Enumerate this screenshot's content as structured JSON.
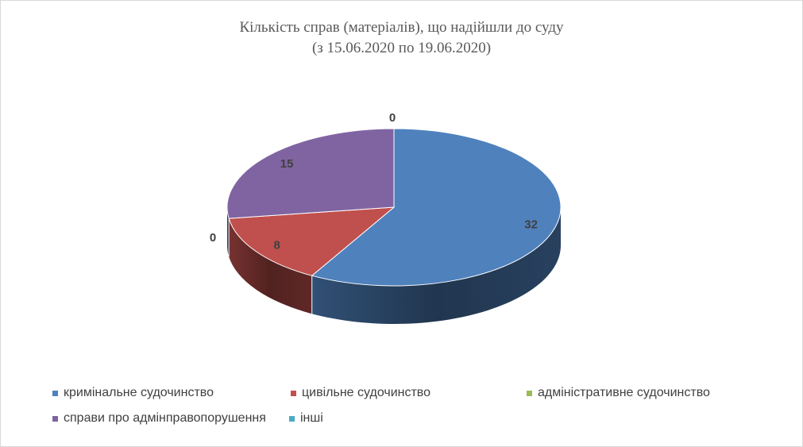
{
  "chart_data": {
    "type": "pie",
    "title": "Кількість справ (матеріалів), що надійшли до суду",
    "subtitle": "(з 15.06.2020 по 19.06.2020)",
    "categories": [
      "кримінальне судочинство",
      "цивільне судочинство",
      "адміністративне судочинство",
      "справи про адмінправопорушення",
      "інші"
    ],
    "values": [
      32,
      8,
      0,
      15,
      0
    ],
    "colors": [
      "#4f81bd",
      "#c0504d",
      "#9bbb59",
      "#8064a2",
      "#4bacc6"
    ],
    "style": "3d",
    "legend_position": "bottom"
  }
}
